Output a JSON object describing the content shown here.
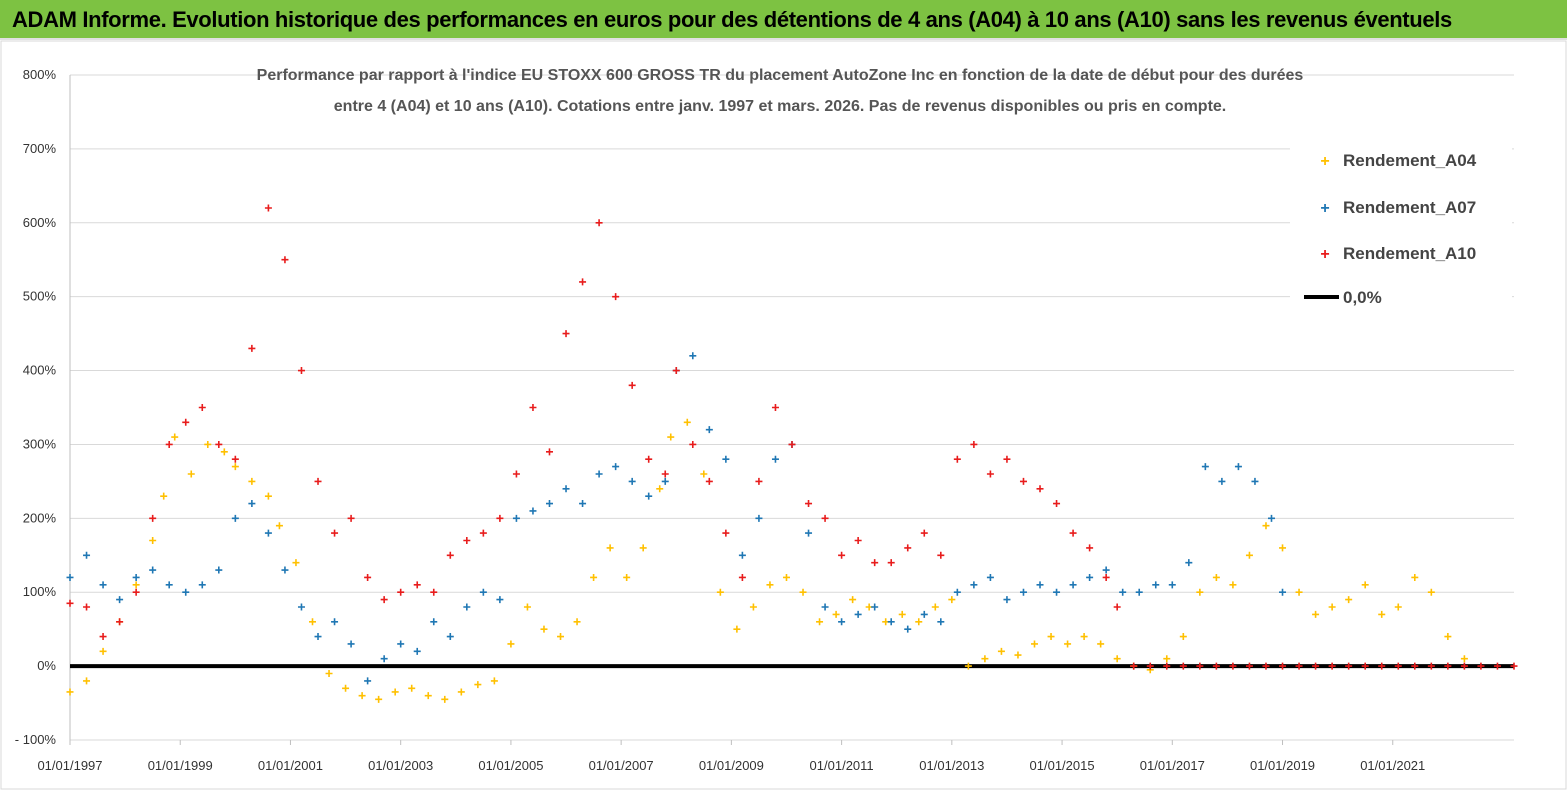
{
  "banner": {
    "title": "ADAM Informe. Evolution historique des performances en euros pour des détentions de 4 ans (A04) à 10 ans (A10) sans les revenus éventuels",
    "background": "#7dc242"
  },
  "chart_data": {
    "type": "scatter",
    "title_lines": [
      "Performance par rapport à l'indice EU STOXX 600 GROSS TR  du placement AutoZone Inc en fonction de la date de début pour des durées",
      "entre 4 (A04) et 10 ans (A10). Cotations entre janv. 1997 et mars. 2026. Pas de revenus disponibles ou pris en compte."
    ],
    "xlabel": "",
    "ylabel": "",
    "x_ticks": [
      "01/01/1997",
      "01/01/1999",
      "01/01/2001",
      "01/01/2003",
      "01/01/2005",
      "01/01/2007",
      "01/01/2009",
      "01/01/2011",
      "01/01/2013",
      "01/01/2015",
      "01/01/2017",
      "01/01/2019",
      "01/01/2021"
    ],
    "y_ticks": [
      "- 100%",
      "0%",
      "100%",
      "200%",
      "300%",
      "400%",
      "500%",
      "600%",
      "700%",
      "800%"
    ],
    "xlim": [
      1997.0,
      2023.2
    ],
    "ylim": [
      -100,
      800
    ],
    "grid": "horizontal",
    "legend_position": "top-right",
    "series": [
      {
        "name": "Rendement_A04",
        "marker": "+",
        "color": "#ffc000",
        "x": [
          1997.0,
          1997.3,
          1997.6,
          1997.9,
          1998.2,
          1998.5,
          1998.7,
          1998.9,
          1999.2,
          1999.5,
          1999.8,
          2000.0,
          2000.3,
          2000.6,
          2000.8,
          2001.1,
          2001.4,
          2001.7,
          2002.0,
          2002.3,
          2002.6,
          2002.9,
          2003.2,
          2003.5,
          2003.8,
          2004.1,
          2004.4,
          2004.7,
          2005.0,
          2005.3,
          2005.6,
          2005.9,
          2006.2,
          2006.5,
          2006.8,
          2007.1,
          2007.4,
          2007.7,
          2007.9,
          2008.2,
          2008.5,
          2008.8,
          2009.1,
          2009.4,
          2009.7,
          2010.0,
          2010.3,
          2010.6,
          2010.9,
          2011.2,
          2011.5,
          2011.8,
          2012.1,
          2012.4,
          2012.7,
          2013.0,
          2013.3,
          2013.6,
          2013.9,
          2014.2,
          2014.5,
          2014.8,
          2015.1,
          2015.4,
          2015.7,
          2016.0,
          2016.3,
          2016.6,
          2016.9,
          2017.2,
          2017.5,
          2017.8,
          2018.1,
          2018.4,
          2018.7,
          2019.0,
          2019.3,
          2019.6,
          2019.9,
          2020.2,
          2020.5,
          2020.8,
          2021.1,
          2021.4,
          2021.7,
          2022.0,
          2022.3
        ],
        "y": [
          -35,
          -20,
          20,
          60,
          110,
          170,
          230,
          310,
          260,
          300,
          290,
          270,
          250,
          230,
          190,
          140,
          60,
          -10,
          -30,
          -40,
          -45,
          -35,
          -30,
          -40,
          -45,
          -35,
          -25,
          -20,
          30,
          80,
          50,
          40,
          60,
          120,
          160,
          120,
          160,
          240,
          310,
          330,
          260,
          100,
          50,
          80,
          110,
          120,
          100,
          60,
          70,
          90,
          80,
          60,
          70,
          60,
          80,
          90,
          0,
          10,
          20,
          15,
          30,
          40,
          30,
          40,
          30,
          10,
          0,
          -5,
          10,
          40,
          100,
          120,
          110,
          150,
          190,
          160,
          100,
          70,
          80,
          90,
          110,
          70,
          80,
          120,
          100,
          40,
          10
        ]
      },
      {
        "name": "Rendement_A07",
        "marker": "+",
        "color": "#1f77b4",
        "x": [
          1997.0,
          1997.3,
          1997.6,
          1997.9,
          1998.2,
          1998.5,
          1998.8,
          1999.1,
          1999.4,
          1999.7,
          2000.0,
          2000.3,
          2000.6,
          2000.9,
          2001.2,
          2001.5,
          2001.8,
          2002.1,
          2002.4,
          2002.7,
          2003.0,
          2003.3,
          2003.6,
          2003.9,
          2004.2,
          2004.5,
          2004.8,
          2005.1,
          2005.4,
          2005.7,
          2006.0,
          2006.3,
          2006.6,
          2006.9,
          2007.2,
          2007.5,
          2007.8,
          2008.0,
          2008.3,
          2008.6,
          2008.9,
          2009.2,
          2009.5,
          2009.8,
          2010.1,
          2010.4,
          2010.7,
          2011.0,
          2011.3,
          2011.6,
          2011.9,
          2012.2,
          2012.5,
          2012.8,
          2013.1,
          2013.4,
          2013.7,
          2014.0,
          2014.3,
          2014.6,
          2014.9,
          2015.2,
          2015.5,
          2015.8,
          2016.1,
          2016.4,
          2016.7,
          2017.0,
          2017.3,
          2017.6,
          2017.9,
          2018.2,
          2018.5,
          2018.8,
          2019.0
        ],
        "y": [
          120,
          150,
          110,
          90,
          120,
          130,
          110,
          100,
          110,
          130,
          200,
          220,
          180,
          130,
          80,
          40,
          60,
          30,
          -20,
          10,
          30,
          20,
          60,
          40,
          80,
          100,
          90,
          200,
          210,
          220,
          240,
          220,
          260,
          270,
          250,
          230,
          250,
          400,
          420,
          320,
          280,
          150,
          200,
          280,
          300,
          180,
          80,
          60,
          70,
          80,
          60,
          50,
          70,
          60,
          100,
          110,
          120,
          90,
          100,
          110,
          100,
          110,
          120,
          130,
          100,
          100,
          110,
          110,
          140,
          270,
          250,
          270,
          250,
          200,
          100
        ]
      },
      {
        "name": "Rendement_A10",
        "marker": "+",
        "color": "#e81c1c",
        "x": [
          1997.0,
          1997.3,
          1997.6,
          1997.9,
          1998.2,
          1998.5,
          1998.8,
          1999.1,
          1999.4,
          1999.7,
          2000.0,
          2000.3,
          2000.6,
          2000.9,
          2001.2,
          2001.5,
          2001.8,
          2002.1,
          2002.4,
          2002.7,
          2003.0,
          2003.3,
          2003.6,
          2003.9,
          2004.2,
          2004.5,
          2004.8,
          2005.1,
          2005.4,
          2005.7,
          2006.0,
          2006.3,
          2006.6,
          2006.9,
          2007.2,
          2007.5,
          2007.8,
          2008.0,
          2008.3,
          2008.6,
          2008.9,
          2009.2,
          2009.5,
          2009.8,
          2010.1,
          2010.4,
          2010.7,
          2011.0,
          2011.3,
          2011.6,
          2011.9,
          2012.2,
          2012.5,
          2012.8,
          2013.1,
          2013.4,
          2013.7,
          2014.0,
          2014.3,
          2014.6,
          2014.9,
          2015.2,
          2015.5,
          2015.8,
          2016.0,
          2016.3,
          2016.6,
          2016.9,
          2017.2,
          2017.5,
          2017.8,
          2018.1,
          2018.4,
          2018.7,
          2019.0,
          2019.3,
          2019.6,
          2019.9,
          2020.2,
          2020.5,
          2020.8,
          2021.1,
          2021.4,
          2021.7,
          2022.0,
          2022.3,
          2022.6,
          2022.9,
          2023.2
        ],
        "y": [
          85,
          80,
          40,
          60,
          100,
          200,
          300,
          330,
          350,
          300,
          280,
          430,
          620,
          550,
          400,
          250,
          180,
          200,
          120,
          90,
          100,
          110,
          100,
          150,
          170,
          180,
          200,
          260,
          350,
          290,
          450,
          520,
          600,
          500,
          380,
          280,
          260,
          400,
          300,
          250,
          180,
          120,
          250,
          350,
          300,
          220,
          200,
          150,
          170,
          140,
          140,
          160,
          180,
          150,
          280,
          300,
          260,
          280,
          250,
          240,
          220,
          180,
          160,
          120,
          80,
          0,
          0,
          0,
          0,
          0,
          0,
          0,
          0,
          0,
          0,
          0,
          0,
          0,
          0,
          0,
          0,
          0,
          0,
          0,
          0,
          0,
          0,
          0,
          0
        ]
      }
    ],
    "reference_line": {
      "name": "0,0%",
      "y": 0,
      "color": "#000000"
    }
  }
}
